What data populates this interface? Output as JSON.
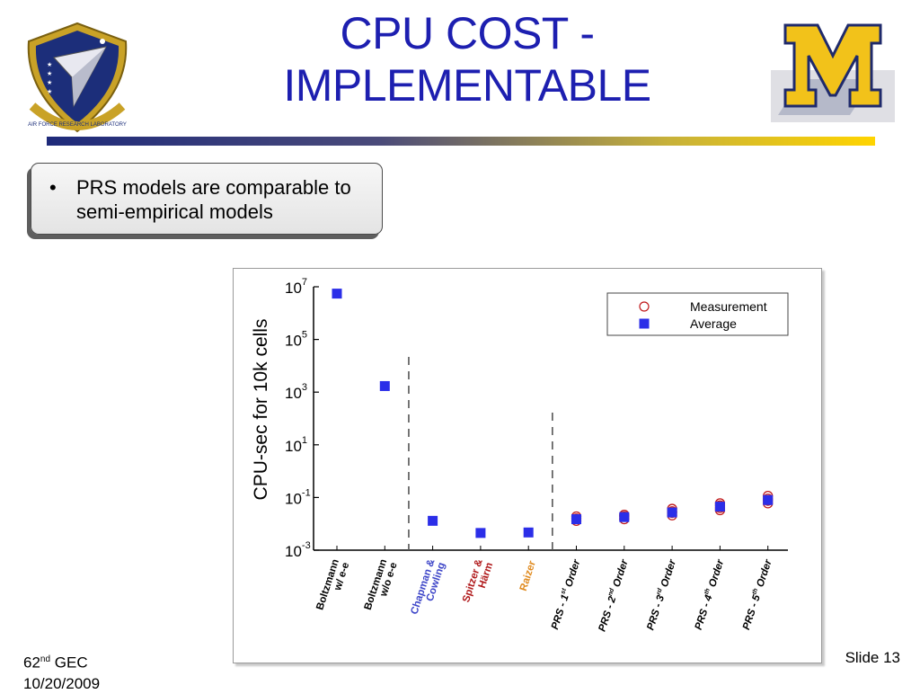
{
  "slide": {
    "title_line1": "CPU COST -",
    "title_line2": "IMPLEMENTABLE",
    "bullet_symbol": "•",
    "bullet_text": "PRS models are comparable to semi-empirical models",
    "footer_left_num": "62",
    "footer_left_sup": "nd",
    "footer_left_rest": " GEC",
    "footer_left_date": "10/20/2009",
    "footer_right": "Slide 13",
    "logo_left_text": "AIR FORCE RESEARCH LABORATORY",
    "logo_right_text": "M",
    "colors": {
      "title": "#1d1fb0",
      "rule_start": "#1e2a7a",
      "rule_end": "#ffd400"
    }
  },
  "chart_data": {
    "type": "scatter",
    "ylabel": "CPU-sec for 10k cells",
    "yscale": "log",
    "ylim": [
      0.001,
      10000000
    ],
    "yticks": [
      {
        "base": "10",
        "exp": "7"
      },
      {
        "base": "10",
        "exp": "5"
      },
      {
        "base": "10",
        "exp": "3"
      },
      {
        "base": "10",
        "exp": "1"
      },
      {
        "base": "10",
        "exp": "-1"
      },
      {
        "base": "10",
        "exp": "-3"
      }
    ],
    "categories": [
      {
        "lines": [
          "Boltzmann",
          "w/ e-e"
        ],
        "color": "#000000"
      },
      {
        "lines": [
          "Boltzmann",
          "w/o e-e"
        ],
        "color": "#000000"
      },
      {
        "lines": [
          "Chapman &",
          "Cowling"
        ],
        "color": "#3d45c8"
      },
      {
        "lines": [
          "Spitzer &",
          "Härm"
        ],
        "color": "#b0191b"
      },
      {
        "lines": [
          "Raizer"
        ],
        "color": "#e08a1e"
      },
      {
        "lines": [
          "PRS - 1",
          "st",
          " Order"
        ],
        "color": "#000000"
      },
      {
        "lines": [
          "PRS - 2",
          "nd",
          " Order"
        ],
        "color": "#000000"
      },
      {
        "lines": [
          "PRS - 3",
          "rd",
          " Order"
        ],
        "color": "#000000"
      },
      {
        "lines": [
          "PRS - 4",
          "th",
          " Order"
        ],
        "color": "#000000"
      },
      {
        "lines": [
          "PRS - 5",
          "th",
          " Order"
        ],
        "color": "#000000"
      }
    ],
    "series": [
      {
        "name": "Measurement",
        "marker": "open-circle",
        "color": "#c0191b",
        "points": [
          [
            5,
            0.013
          ],
          [
            5,
            0.016
          ],
          [
            5,
            0.019
          ],
          [
            6,
            0.015
          ],
          [
            6,
            0.019
          ],
          [
            6,
            0.022
          ],
          [
            7,
            0.021
          ],
          [
            7,
            0.026
          ],
          [
            7,
            0.03
          ],
          [
            7,
            0.037
          ],
          [
            8,
            0.033
          ],
          [
            8,
            0.04
          ],
          [
            8,
            0.05
          ],
          [
            8,
            0.06
          ],
          [
            9,
            0.06
          ],
          [
            9,
            0.075
          ],
          [
            9,
            0.09
          ],
          [
            9,
            0.115
          ]
        ]
      },
      {
        "name": "Average",
        "marker": "filled-square",
        "color": "#2b2ee8",
        "points": [
          [
            0,
            5500000
          ],
          [
            1,
            1700
          ],
          [
            2,
            0.013
          ],
          [
            3,
            0.0045
          ],
          [
            4,
            0.0047
          ],
          [
            5,
            0.015
          ],
          [
            6,
            0.018
          ],
          [
            7,
            0.027
          ],
          [
            8,
            0.045
          ],
          [
            9,
            0.08
          ]
        ]
      }
    ],
    "separators_after": [
      1,
      4
    ],
    "legend_position": "top-right",
    "grid": false
  }
}
